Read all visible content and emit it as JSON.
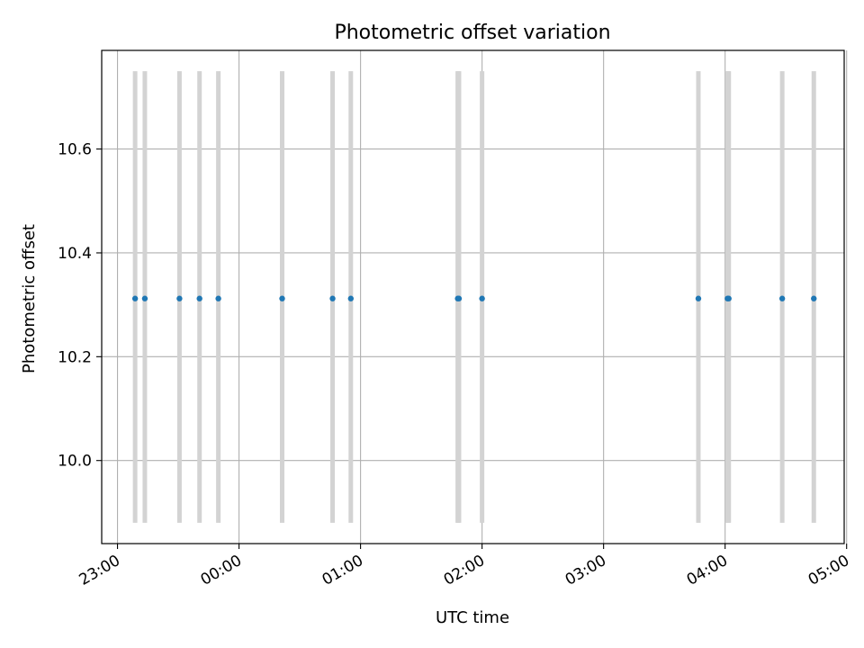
{
  "chart_data": {
    "type": "scatter",
    "title": "Photometric offset variation",
    "xlabel": "UTC time",
    "ylabel": "Photometric offset",
    "grid": true,
    "x_unit": "hours since 23:00 UTC",
    "xlim": [
      -0.13,
      5.98
    ],
    "ylim": [
      9.84,
      10.79
    ],
    "x_ticks": [
      {
        "value": 0,
        "label": "23:00"
      },
      {
        "value": 1,
        "label": "00:00"
      },
      {
        "value": 2,
        "label": "01:00"
      },
      {
        "value": 3,
        "label": "02:00"
      },
      {
        "value": 4,
        "label": "03:00"
      },
      {
        "value": 5,
        "label": "04:00"
      },
      {
        "value": 6,
        "label": "05:00"
      }
    ],
    "y_ticks": [
      {
        "value": 10.0,
        "label": "10.0"
      },
      {
        "value": 10.2,
        "label": "10.2"
      },
      {
        "value": 10.4,
        "label": "10.4"
      },
      {
        "value": 10.6,
        "label": "10.6"
      }
    ],
    "points": [
      {
        "x": 0.145,
        "y": 10.312,
        "err_low": 9.88,
        "err_high": 10.75
      },
      {
        "x": 0.225,
        "y": 10.312,
        "err_low": 9.88,
        "err_high": 10.75
      },
      {
        "x": 0.51,
        "y": 10.312,
        "err_low": 9.88,
        "err_high": 10.75
      },
      {
        "x": 0.675,
        "y": 10.312,
        "err_low": 9.88,
        "err_high": 10.75
      },
      {
        "x": 0.83,
        "y": 10.312,
        "err_low": 9.88,
        "err_high": 10.75
      },
      {
        "x": 1.355,
        "y": 10.312,
        "err_low": 9.88,
        "err_high": 10.75
      },
      {
        "x": 1.77,
        "y": 10.312,
        "err_low": 9.88,
        "err_high": 10.75
      },
      {
        "x": 1.92,
        "y": 10.312,
        "err_low": 9.88,
        "err_high": 10.75
      },
      {
        "x": 2.8,
        "y": 10.312,
        "err_low": 9.88,
        "err_high": 10.75
      },
      {
        "x": 2.81,
        "y": 10.312,
        "err_low": 9.88,
        "err_high": 10.75
      },
      {
        "x": 3.0,
        "y": 10.312,
        "err_low": 9.88,
        "err_high": 10.75
      },
      {
        "x": 4.78,
        "y": 10.312,
        "err_low": 9.88,
        "err_high": 10.75
      },
      {
        "x": 5.02,
        "y": 10.312,
        "err_low": 9.88,
        "err_high": 10.75
      },
      {
        "x": 5.03,
        "y": 10.312,
        "err_low": 9.88,
        "err_high": 10.75
      },
      {
        "x": 5.47,
        "y": 10.312,
        "err_low": 9.88,
        "err_high": 10.75
      },
      {
        "x": 5.73,
        "y": 10.312,
        "err_low": 9.88,
        "err_high": 10.75
      }
    ],
    "colors": {
      "point": "#1f77b4",
      "errorbar": "#d3d3d3",
      "grid": "#b0b0b0",
      "axes": "#000000"
    }
  }
}
